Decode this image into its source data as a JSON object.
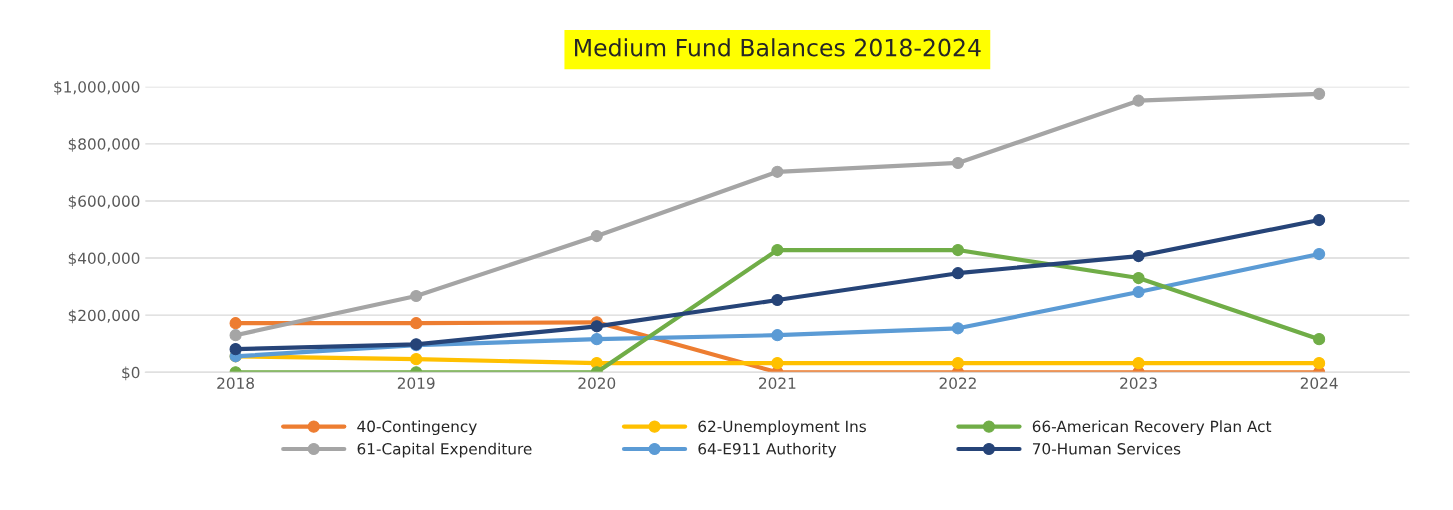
{
  "chart_data": {
    "type": "line",
    "title": "Medium Fund Balances 2018-2024",
    "categories": [
      "2018",
      "2019",
      "2020",
      "2021",
      "2022",
      "2023",
      "2024"
    ],
    "series": [
      {
        "name": "40-Contingency",
        "color": "#ed7d31",
        "values": [
          172000,
          172000,
          175000,
          0,
          0,
          0,
          0
        ]
      },
      {
        "name": "61-Capital Expenditure",
        "color": "#a5a5a5",
        "values": [
          130000,
          267000,
          477000,
          702000,
          733000,
          951000,
          975000
        ]
      },
      {
        "name": "62-Unemployment Ins",
        "color": "#ffc000",
        "values": [
          56000,
          46000,
          32000,
          32000,
          32000,
          32000,
          32000
        ]
      },
      {
        "name": "64-E911 Authority",
        "color": "#5b9bd5",
        "values": [
          56000,
          95000,
          116000,
          130000,
          154000,
          281000,
          414000
        ]
      },
      {
        "name": "66-American Recovery Plan Act",
        "color": "#70ad47",
        "values": [
          0,
          0,
          0,
          428000,
          428000,
          330000,
          116000
        ]
      },
      {
        "name": "70-Human Services",
        "color": "#264478",
        "values": [
          81000,
          98000,
          161000,
          253000,
          347000,
          407000,
          533000
        ]
      }
    ],
    "ylim": [
      0,
      1000000
    ],
    "yticks": [
      {
        "value": 0,
        "label": "$0"
      },
      {
        "value": 200000,
        "label": "$200,000"
      },
      {
        "value": 400000,
        "label": "$400,000"
      },
      {
        "value": 600000,
        "label": "$600,000"
      },
      {
        "value": 800000,
        "label": "$800,000"
      },
      {
        "value": 1000000,
        "label": "$1,000,000"
      }
    ],
    "grid": "y",
    "legend": "bottom",
    "marker": "circle",
    "line_style": "solid"
  }
}
